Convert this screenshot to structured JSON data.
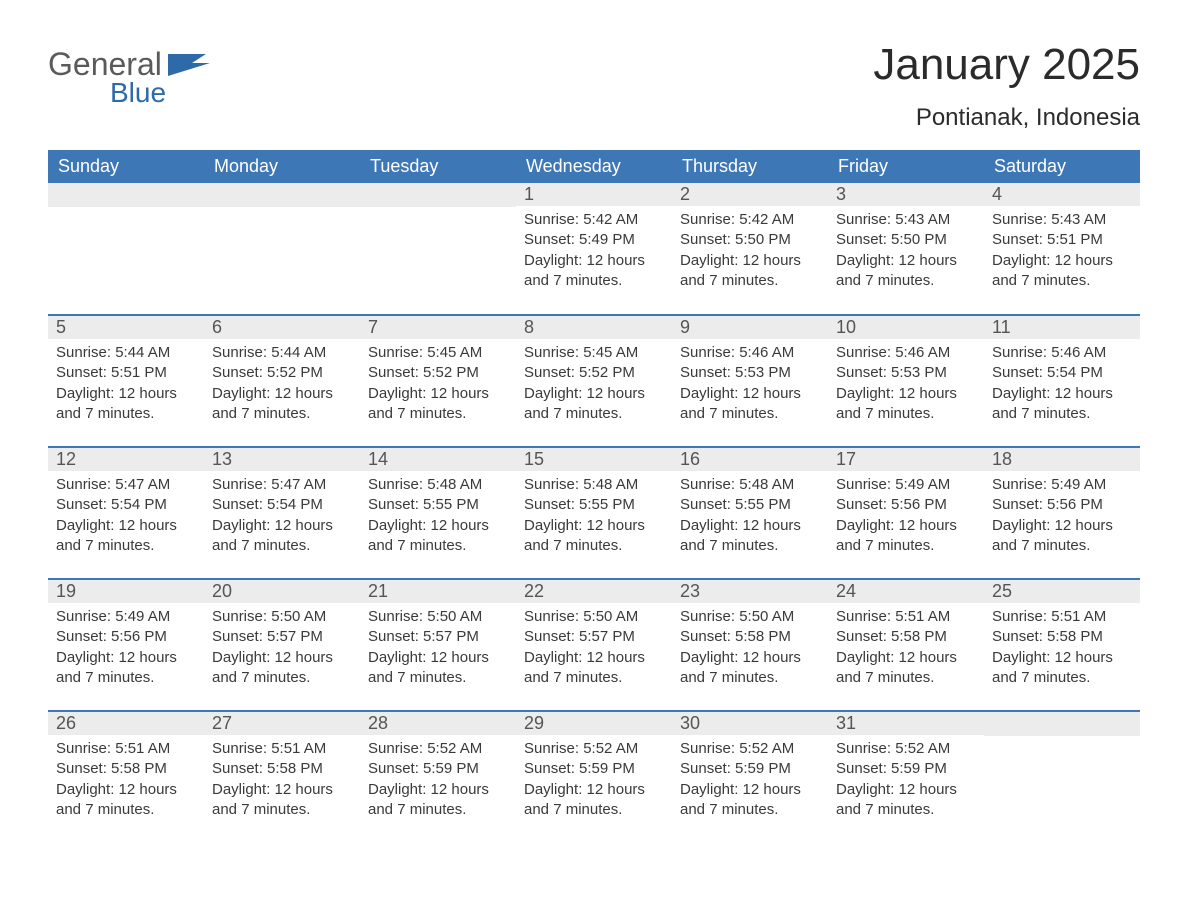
{
  "brand": {
    "word1": "General",
    "word2": "Blue"
  },
  "title": "January 2025",
  "location": "Pontianak, Indonesia",
  "colors": {
    "header_bg": "#3d77b6",
    "header_text": "#ffffff",
    "daynum_bg": "#ececec",
    "row_border": "#3d77b6",
    "logo_gray": "#5a5a5a",
    "logo_blue": "#2f6aa8"
  },
  "weekdays": [
    "Sunday",
    "Monday",
    "Tuesday",
    "Wednesday",
    "Thursday",
    "Friday",
    "Saturday"
  ],
  "labels": {
    "sunrise": "Sunrise:",
    "sunset": "Sunset:",
    "daylight_prefix": "Daylight:",
    "daylight_value": "12 hours and 7 minutes."
  },
  "weeks": [
    [
      null,
      null,
      null,
      {
        "n": 1,
        "sunrise": "5:42 AM",
        "sunset": "5:49 PM"
      },
      {
        "n": 2,
        "sunrise": "5:42 AM",
        "sunset": "5:50 PM"
      },
      {
        "n": 3,
        "sunrise": "5:43 AM",
        "sunset": "5:50 PM"
      },
      {
        "n": 4,
        "sunrise": "5:43 AM",
        "sunset": "5:51 PM"
      }
    ],
    [
      {
        "n": 5,
        "sunrise": "5:44 AM",
        "sunset": "5:51 PM"
      },
      {
        "n": 6,
        "sunrise": "5:44 AM",
        "sunset": "5:52 PM"
      },
      {
        "n": 7,
        "sunrise": "5:45 AM",
        "sunset": "5:52 PM"
      },
      {
        "n": 8,
        "sunrise": "5:45 AM",
        "sunset": "5:52 PM"
      },
      {
        "n": 9,
        "sunrise": "5:46 AM",
        "sunset": "5:53 PM"
      },
      {
        "n": 10,
        "sunrise": "5:46 AM",
        "sunset": "5:53 PM"
      },
      {
        "n": 11,
        "sunrise": "5:46 AM",
        "sunset": "5:54 PM"
      }
    ],
    [
      {
        "n": 12,
        "sunrise": "5:47 AM",
        "sunset": "5:54 PM"
      },
      {
        "n": 13,
        "sunrise": "5:47 AM",
        "sunset": "5:54 PM"
      },
      {
        "n": 14,
        "sunrise": "5:48 AM",
        "sunset": "5:55 PM"
      },
      {
        "n": 15,
        "sunrise": "5:48 AM",
        "sunset": "5:55 PM"
      },
      {
        "n": 16,
        "sunrise": "5:48 AM",
        "sunset": "5:55 PM"
      },
      {
        "n": 17,
        "sunrise": "5:49 AM",
        "sunset": "5:56 PM"
      },
      {
        "n": 18,
        "sunrise": "5:49 AM",
        "sunset": "5:56 PM"
      }
    ],
    [
      {
        "n": 19,
        "sunrise": "5:49 AM",
        "sunset": "5:56 PM"
      },
      {
        "n": 20,
        "sunrise": "5:50 AM",
        "sunset": "5:57 PM"
      },
      {
        "n": 21,
        "sunrise": "5:50 AM",
        "sunset": "5:57 PM"
      },
      {
        "n": 22,
        "sunrise": "5:50 AM",
        "sunset": "5:57 PM"
      },
      {
        "n": 23,
        "sunrise": "5:50 AM",
        "sunset": "5:58 PM"
      },
      {
        "n": 24,
        "sunrise": "5:51 AM",
        "sunset": "5:58 PM"
      },
      {
        "n": 25,
        "sunrise": "5:51 AM",
        "sunset": "5:58 PM"
      }
    ],
    [
      {
        "n": 26,
        "sunrise": "5:51 AM",
        "sunset": "5:58 PM"
      },
      {
        "n": 27,
        "sunrise": "5:51 AM",
        "sunset": "5:58 PM"
      },
      {
        "n": 28,
        "sunrise": "5:52 AM",
        "sunset": "5:59 PM"
      },
      {
        "n": 29,
        "sunrise": "5:52 AM",
        "sunset": "5:59 PM"
      },
      {
        "n": 30,
        "sunrise": "5:52 AM",
        "sunset": "5:59 PM"
      },
      {
        "n": 31,
        "sunrise": "5:52 AM",
        "sunset": "5:59 PM"
      },
      null
    ]
  ]
}
